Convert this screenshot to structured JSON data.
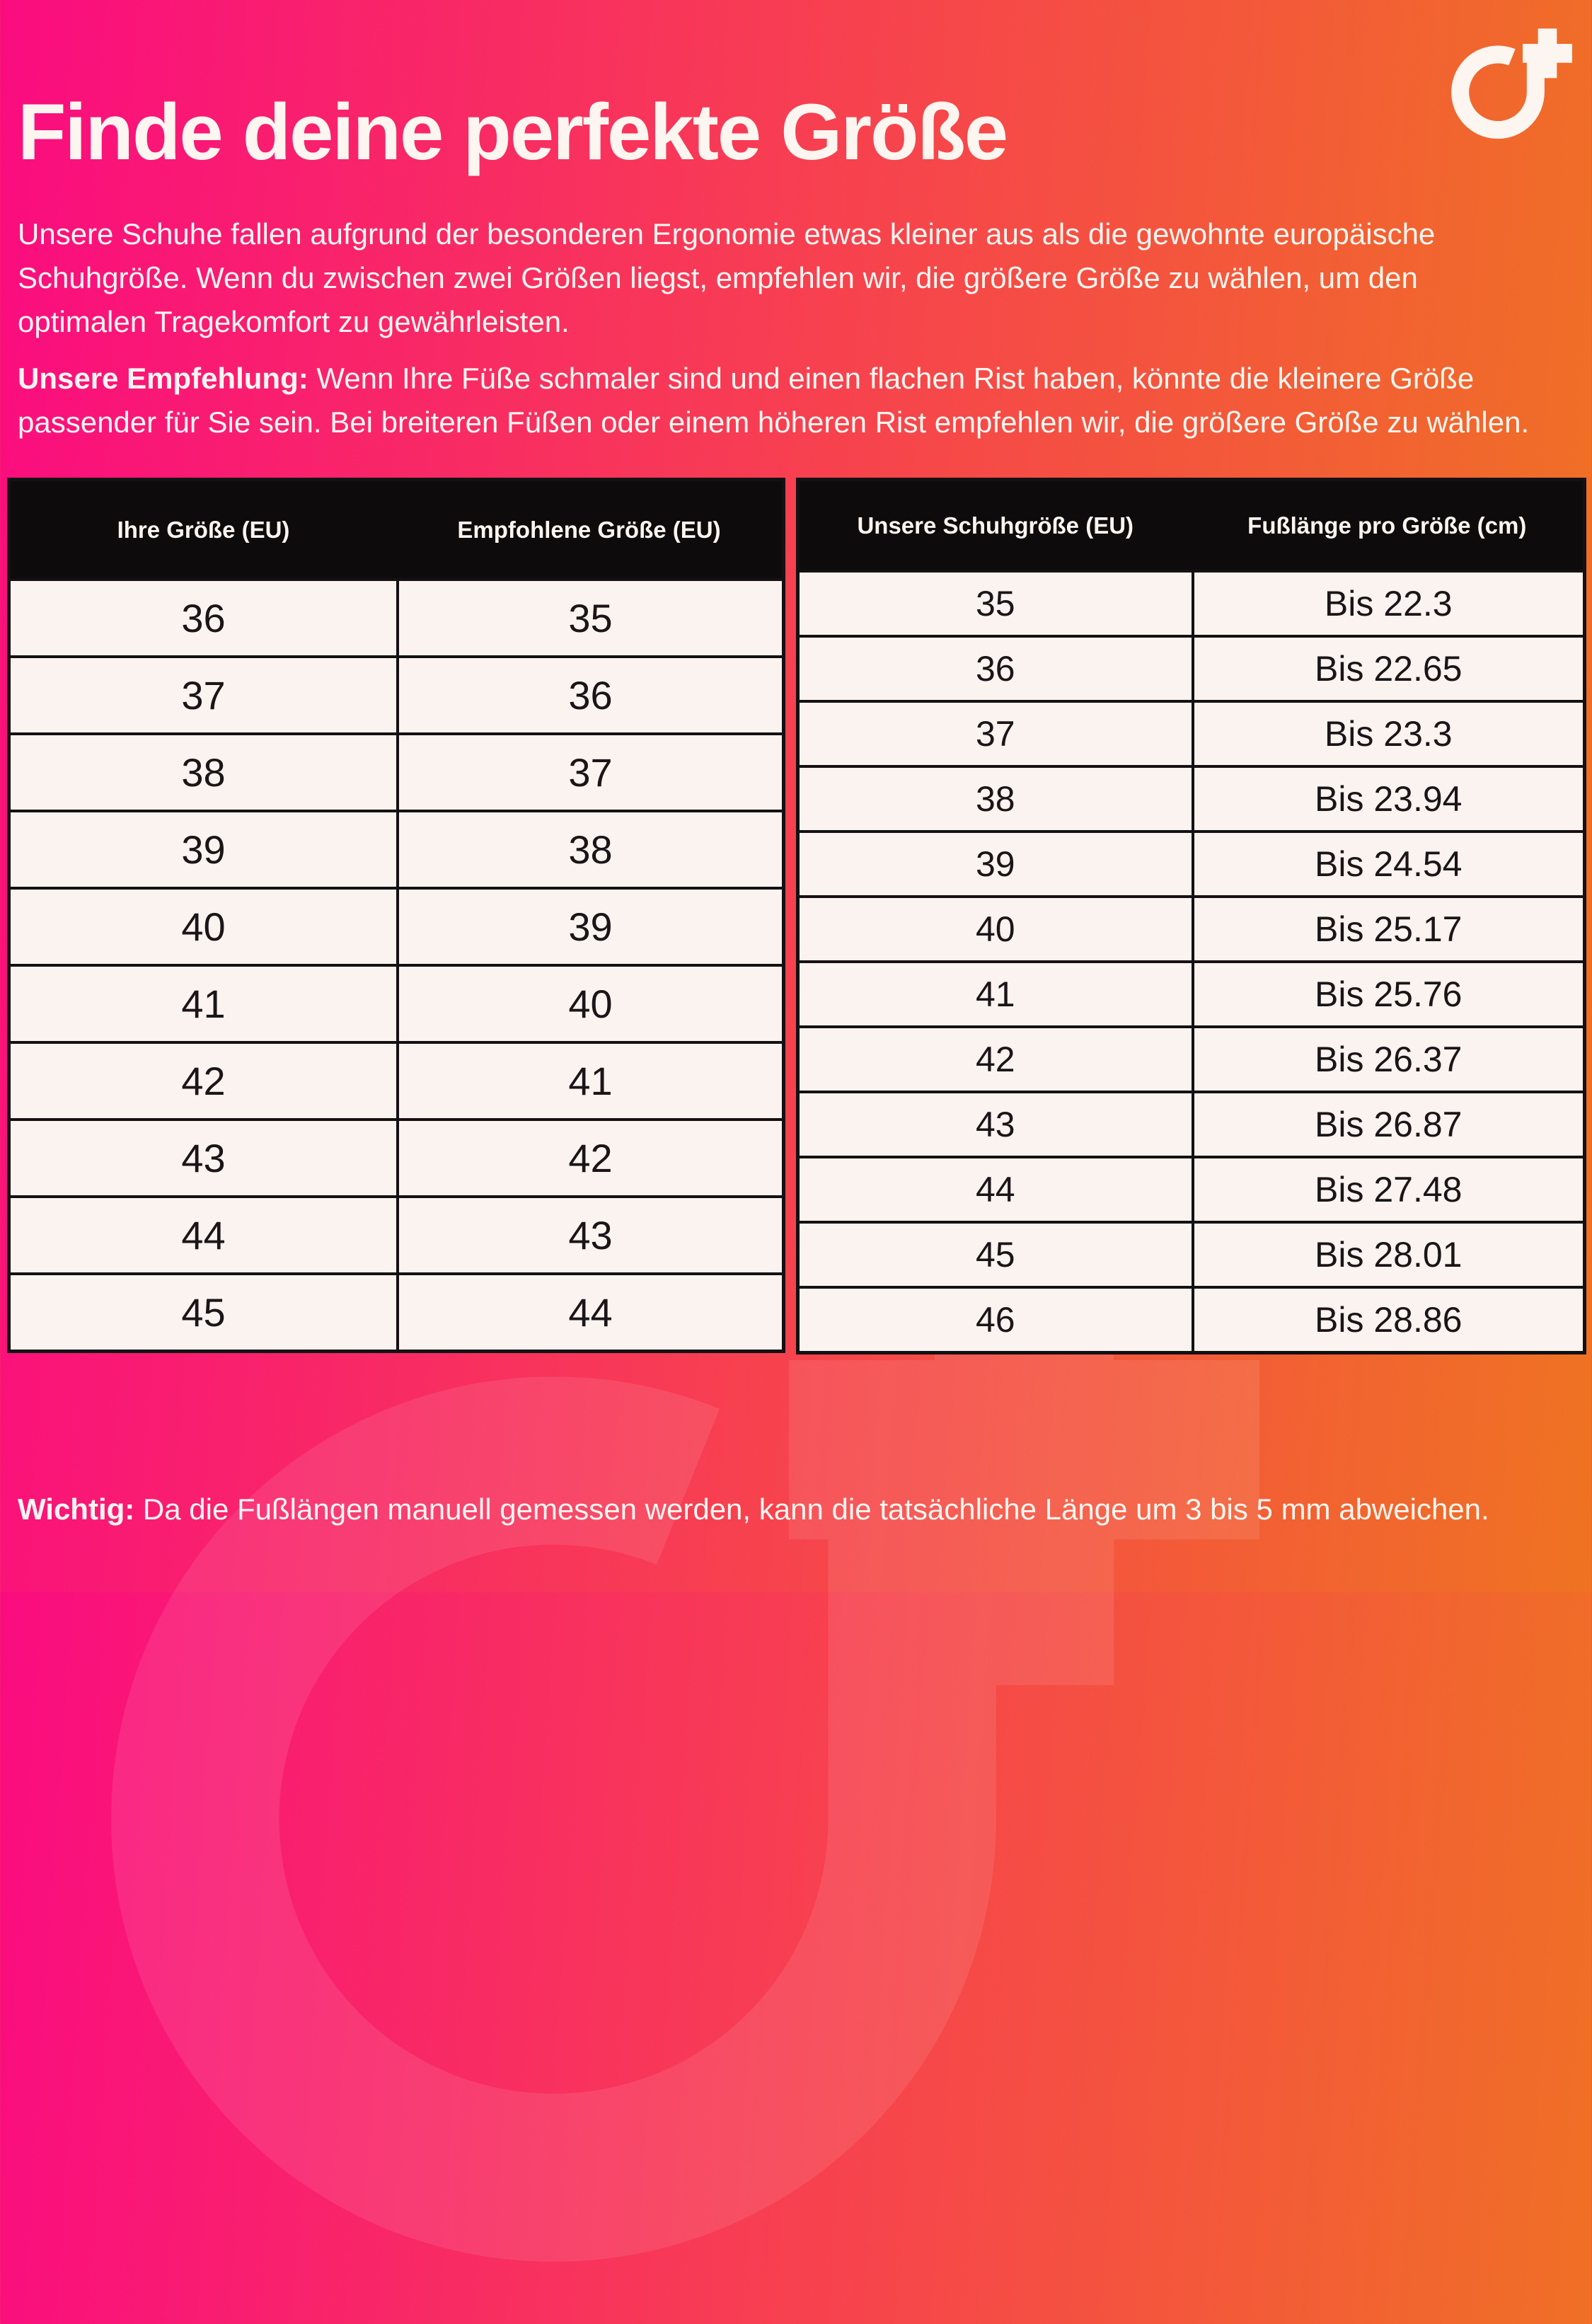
{
  "header": {
    "title": "Finde deine perfekte Größe"
  },
  "intro": {
    "paragraph": "Unsere Schuhe fallen aufgrund der besonderen Ergonomie etwas kleiner aus als die gewohnte europäische Schuhgröße. Wenn du zwischen zwei Größen liegst, empfehlen wir, die größere Größe zu wählen, um den optimalen Tragekomfort zu gewährleisten.",
    "recommendation_label": "Unsere Empfehlung:",
    "recommendation_text": " Wenn Ihre Füße schmaler sind und einen flachen Rist haben, könnte die kleinere Größe passender für Sie sein. Bei breiteren Füßen oder einem höheren Rist empfehlen wir, die größere Größe zu wählen."
  },
  "tables": {
    "conversion": {
      "headers": [
        "Ihre Größe (EU)",
        "Empfohlene Größe (EU)"
      ],
      "rows": [
        [
          "36",
          "35"
        ],
        [
          "37",
          "36"
        ],
        [
          "38",
          "37"
        ],
        [
          "39",
          "38"
        ],
        [
          "40",
          "39"
        ],
        [
          "41",
          "40"
        ],
        [
          "42",
          "41"
        ],
        [
          "43",
          "42"
        ],
        [
          "44",
          "43"
        ],
        [
          "45",
          "44"
        ]
      ]
    },
    "footlength": {
      "headers": [
        "Unsere Schuhgröße (EU)",
        "Fußlänge pro Größe (cm)"
      ],
      "rows": [
        [
          "35",
          "Bis 22.3"
        ],
        [
          "36",
          "Bis 22.65"
        ],
        [
          "37",
          "Bis 23.3"
        ],
        [
          "38",
          "Bis 23.94"
        ],
        [
          "39",
          "Bis 24.54"
        ],
        [
          "40",
          "Bis 25.17"
        ],
        [
          "41",
          "Bis 25.76"
        ],
        [
          "42",
          "Bis 26.37"
        ],
        [
          "43",
          "Bis 26.87"
        ],
        [
          "44",
          "Bis 27.48"
        ],
        [
          "45",
          "Bis 28.01"
        ],
        [
          "46",
          "Bis 28.86"
        ]
      ]
    }
  },
  "footer": {
    "important_label": "Wichtig:",
    "important_text": " Da die Fußlängen manuell gemessen werden, kann die tatsächliche Länge um 3 bis 5 mm abweichen."
  },
  "colors": {
    "gradient_start": "#fa0c80",
    "gradient_mid": "#f7414f",
    "gradient_end": "#ef7322",
    "table_header_bg": "#0e0b0c",
    "table_cell_bg": "#faf3ef",
    "table_border": "#141114",
    "text_light": "#fdf5f0",
    "text_dark": "#1a1518"
  }
}
